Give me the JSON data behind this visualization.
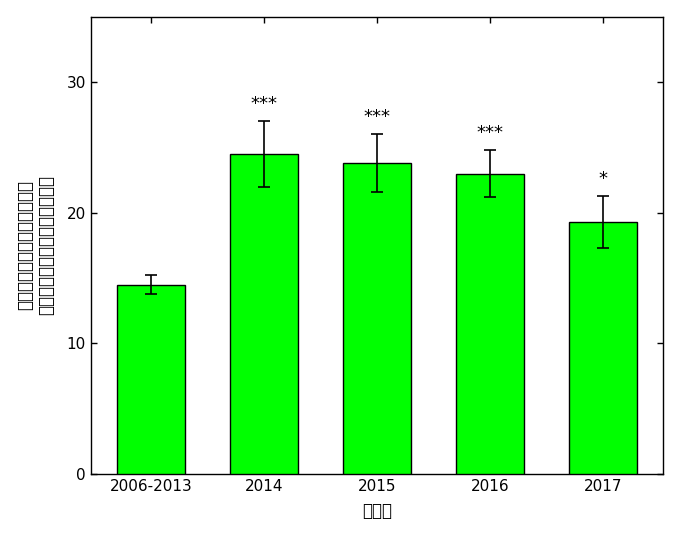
{
  "categories": [
    "2006-2013",
    "2014",
    "2015",
    "2016",
    "2017"
  ],
  "values": [
    14.5,
    24.5,
    23.8,
    23.0,
    19.3
  ],
  "errors": [
    0.7,
    2.5,
    2.2,
    1.8,
    2.0
  ],
  "bar_color": "#00FF00",
  "bar_edgecolor": "#000000",
  "significance": [
    "",
    "***",
    "***",
    "***",
    "*"
  ],
  "xlabel": "観測年",
  "ylabel_line1": "森林全体の光合成量に占める",
  "ylabel_line2": "林床部の光合成量の割合（％）",
  "ylim": [
    0,
    35
  ],
  "yticks": [
    0,
    10,
    20,
    30
  ],
  "bar_width": 0.6,
  "sig_fontsize": 13,
  "axis_fontsize": 12,
  "tick_fontsize": 11,
  "background_color": "#ffffff",
  "errorbar_capsize": 4,
  "errorbar_linewidth": 1.2
}
